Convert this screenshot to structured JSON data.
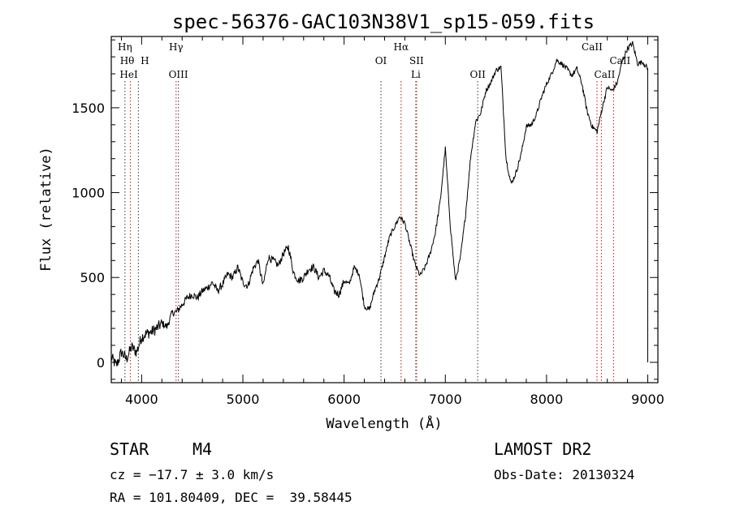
{
  "chart_data": {
    "type": "line",
    "title": "spec-56376-GAC103N38V1_sp15-059.fits",
    "xlabel": "Wavelength (Å)",
    "ylabel": "Flux (relative)",
    "xlim": [
      3700,
      9100
    ],
    "ylim": [
      -120,
      1920
    ],
    "xticks": [
      4000,
      5000,
      6000,
      7000,
      8000,
      9000
    ],
    "yticks": [
      0,
      500,
      1000,
      1500
    ],
    "grid": false,
    "series": [
      {
        "x": [
          3700,
          3750,
          3800,
          3850,
          3900,
          3950,
          4000,
          4050,
          4100,
          4150,
          4200,
          4250,
          4300,
          4350,
          4400,
          4450,
          4500,
          4550,
          4600,
          4650,
          4700,
          4750,
          4800,
          4850,
          4900,
          4950,
          5000,
          5050,
          5100,
          5150,
          5200,
          5250,
          5300,
          5350,
          5400,
          5450,
          5500,
          5550,
          5600,
          5650,
          5700,
          5750,
          5800,
          5850,
          5900,
          5950,
          6000,
          6050,
          6100,
          6150,
          6200,
          6250,
          6300,
          6350,
          6400,
          6450,
          6500,
          6550,
          6600,
          6650,
          6700,
          6750,
          6800,
          6850,
          6900,
          6950,
          7000,
          7050,
          7100,
          7150,
          7200,
          7250,
          7300,
          7350,
          7400,
          7450,
          7500,
          7550,
          7600,
          7650,
          7700,
          7750,
          7800,
          7850,
          7900,
          7950,
          8000,
          8050,
          8100,
          8150,
          8200,
          8250,
          8300,
          8350,
          8400,
          8450,
          8500,
          8550,
          8600,
          8650,
          8700,
          8750,
          8800,
          8850,
          8900,
          8950,
          9000
        ],
        "y": [
          30,
          -20,
          60,
          20,
          90,
          60,
          150,
          170,
          180,
          200,
          230,
          210,
          290,
          300,
          340,
          380,
          400,
          380,
          420,
          440,
          470,
          420,
          460,
          520,
          500,
          560,
          470,
          450,
          550,
          600,
          450,
          620,
          600,
          570,
          640,
          680,
          530,
          480,
          500,
          550,
          560,
          500,
          540,
          510,
          420,
          400,
          480,
          460,
          560,
          520,
          330,
          310,
          420,
          500,
          620,
          740,
          800,
          860,
          820,
          700,
          580,
          510,
          560,
          640,
          760,
          950,
          1260,
          800,
          480,
          620,
          870,
          1210,
          1420,
          1470,
          1600,
          1650,
          1720,
          1740,
          1200,
          1050,
          1120,
          1230,
          1390,
          1400,
          1460,
          1560,
          1640,
          1700,
          1780,
          1760,
          1730,
          1690,
          1730,
          1640,
          1480,
          1390,
          1360,
          1500,
          1620,
          1600,
          1650,
          1780,
          1850,
          1880,
          1760,
          1770,
          1730
        ]
      }
    ],
    "line_markers": [
      {
        "label": "Hη",
        "x": 3835
      },
      {
        "label": "Hθ",
        "x": 3889
      },
      {
        "label": "H",
        "x": 3968
      },
      {
        "label": "HeI",
        "x": 3889
      },
      {
        "label": "Hγ",
        "x": 4340
      },
      {
        "label": "OIII",
        "x": 4363
      },
      {
        "label": "OI",
        "x": 6364
      },
      {
        "label": "Hα",
        "x": 6563
      },
      {
        "label": "SII",
        "x": 6716
      },
      {
        "label": "Li",
        "x": 6708
      },
      {
        "label": "OII",
        "x": 7320
      },
      {
        "label": "CaII",
        "x": 8498
      },
      {
        "label": "CaII",
        "x": 8542
      },
      {
        "label": "CaII",
        "x": 8662
      }
    ]
  },
  "info": {
    "object_type": "STAR",
    "subclass": "M4",
    "survey": "LAMOST DR2",
    "cz": "cz = −17.7 ± 3.0 km/s",
    "obs_date": "Obs-Date: 20130324",
    "coords": "RA = 101.80409, DEC =  39.58445"
  }
}
